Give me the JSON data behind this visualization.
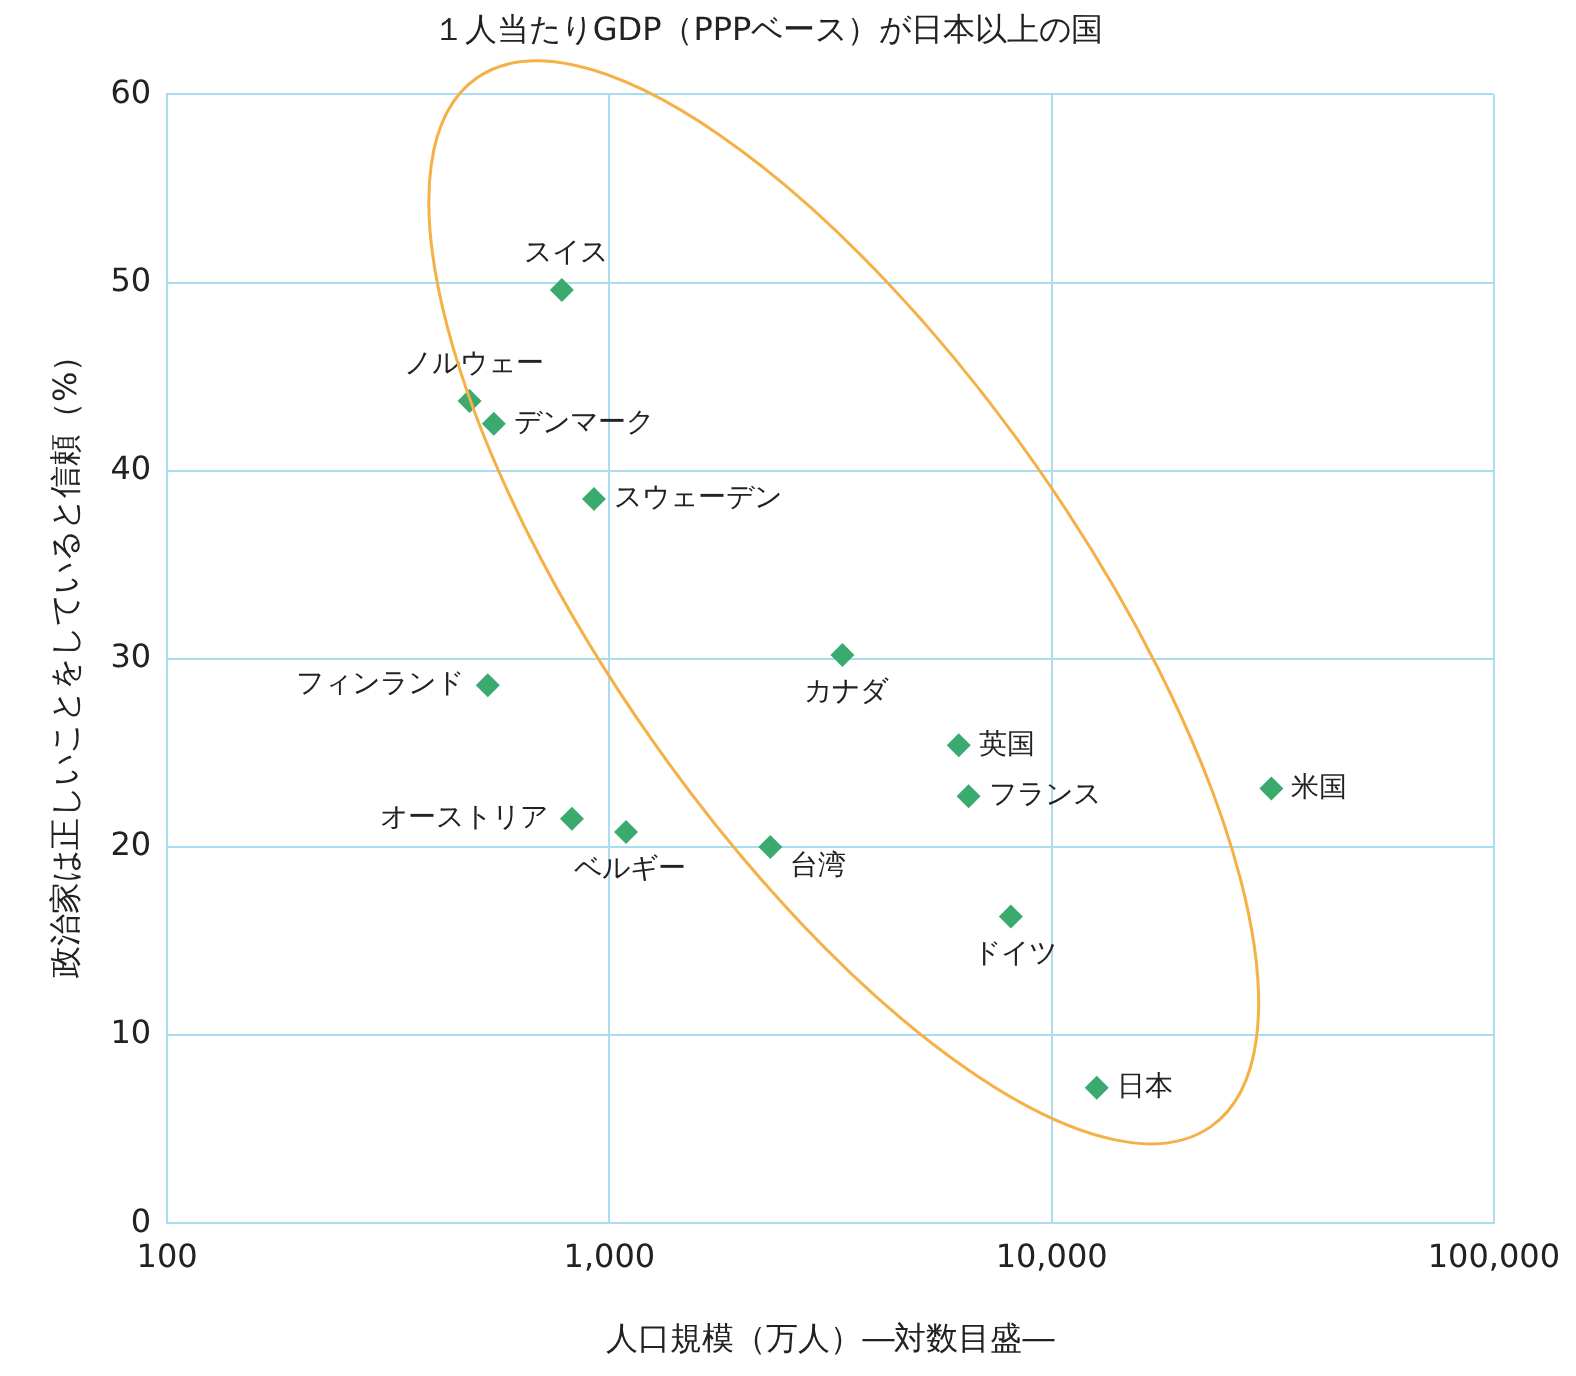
{
  "chart_data": {
    "type": "scatter",
    "title": "１人当たりGDP（PPPベース）が日本以上の国",
    "xlabel": "人口規模（万人）―対数目盛―",
    "ylabel": "政治家は正しいことをしていると信頼（%）",
    "log": "x",
    "grid": true,
    "legend": false,
    "marker": "diamond",
    "xlim": [
      100,
      100000
    ],
    "xticks": [
      {
        "value": 100,
        "label": "100"
      },
      {
        "value": 1000,
        "label": "1,000"
      },
      {
        "value": 10000,
        "label": "10,000"
      },
      {
        "value": 100000,
        "label": "100,000"
      }
    ],
    "ylim": [
      0,
      60
    ],
    "yticks": [
      0,
      10,
      20,
      30,
      40,
      50,
      60
    ],
    "series": [
      {
        "color": "#3aaa6e",
        "x": [
          781,
          483,
          548,
          923,
          531,
          3365,
          6166,
          6490,
          31400,
          823,
          1091,
          2312,
          8090,
          12650
        ],
        "values": [
          49.6,
          43.7,
          42.5,
          38.5,
          28.6,
          30.2,
          25.4,
          22.7,
          23.1,
          21.5,
          20.8,
          20.0,
          16.3,
          7.2
        ]
      }
    ],
    "annotations": [
      {
        "text": "スイス",
        "x": 781,
        "y": 49.6
      },
      {
        "text": "ノルウェー",
        "x": 483,
        "y": 43.7
      },
      {
        "text": "デンマーク",
        "x": 548,
        "y": 42.5
      },
      {
        "text": "スウェーデン",
        "x": 923,
        "y": 38.5
      },
      {
        "text": "フィンランド",
        "x": 531,
        "y": 28.6
      },
      {
        "text": "カナダ",
        "x": 3365,
        "y": 30.2
      },
      {
        "text": "英国",
        "x": 6166,
        "y": 25.4
      },
      {
        "text": "フランス",
        "x": 6490,
        "y": 22.7
      },
      {
        "text": "米国",
        "x": 31400,
        "y": 23.1
      },
      {
        "text": "オーストリア",
        "x": 823,
        "y": 21.5
      },
      {
        "text": "ベルギー",
        "x": 1091,
        "y": 20.8
      },
      {
        "text": "台湾",
        "x": 2312,
        "y": 20.0
      },
      {
        "text": "ドイツ",
        "x": 8090,
        "y": 16.3
      },
      {
        "text": "日本",
        "x": 12650,
        "y": 7.2
      }
    ]
  }
}
